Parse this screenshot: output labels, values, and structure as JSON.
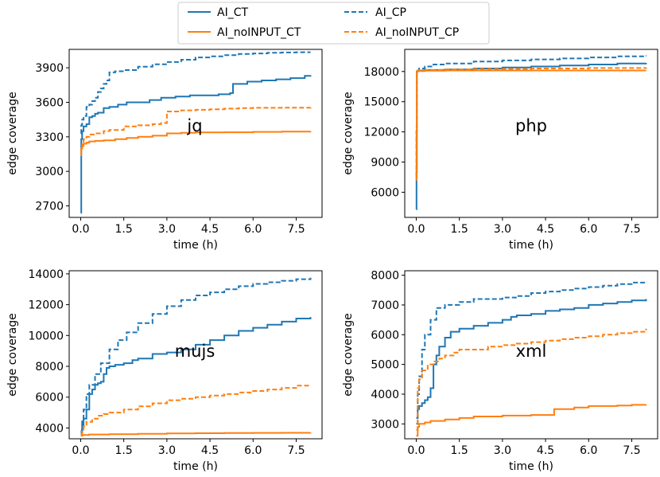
{
  "legend": {
    "entries": [
      {
        "label": "AI_CT",
        "color": "#1f77b4",
        "dash": "solid"
      },
      {
        "label": "AI_CP",
        "color": "#1f77b4",
        "dash": "dashed"
      },
      {
        "label": "AI_noINPUT_CT",
        "color": "#ff7f0e",
        "dash": "solid"
      },
      {
        "label": "AI_noINPUT_CP",
        "color": "#ff7f0e",
        "dash": "dashed"
      }
    ]
  },
  "chart_data": [
    {
      "type": "line",
      "title": "jq",
      "xlabel": "time (h)",
      "ylabel": "edge coverage",
      "xlim": [
        -0.4,
        8.4
      ],
      "ylim": [
        2600,
        4060
      ],
      "xticks": [
        "0.0",
        "1.5",
        "3.0",
        "4.5",
        "6.0",
        "7.5"
      ],
      "yticks": [
        "2700",
        "3000",
        "3300",
        "3600",
        "3900"
      ],
      "series": [
        {
          "name": "AI_CT",
          "x": [
            0,
            0.02,
            0.05,
            0.1,
            0.2,
            0.3,
            0.4,
            0.5,
            0.6,
            0.8,
            1.0,
            1.3,
            1.6,
            2.0,
            2.4,
            2.8,
            3.3,
            3.8,
            4.3,
            4.8,
            5.2,
            5.3,
            5.8,
            6.3,
            6.8,
            7.3,
            7.8,
            8.0
          ],
          "y": [
            2640,
            3280,
            3350,
            3390,
            3410,
            3470,
            3480,
            3500,
            3510,
            3550,
            3560,
            3580,
            3600,
            3600,
            3620,
            3640,
            3650,
            3660,
            3660,
            3670,
            3680,
            3760,
            3780,
            3790,
            3800,
            3810,
            3830,
            3835
          ]
        },
        {
          "name": "AI_CP",
          "x": [
            0,
            0.02,
            0.05,
            0.1,
            0.2,
            0.3,
            0.4,
            0.5,
            0.6,
            0.7,
            0.8,
            0.9,
            1.0,
            1.2,
            1.5,
            2.0,
            2.5,
            3.0,
            3.5,
            4.0,
            4.5,
            5.0,
            5.5,
            6.0,
            6.5,
            7.0,
            7.5,
            8.0
          ],
          "y": [
            3330,
            3400,
            3450,
            3480,
            3560,
            3580,
            3610,
            3640,
            3690,
            3720,
            3760,
            3790,
            3860,
            3870,
            3880,
            3910,
            3930,
            3950,
            3970,
            3990,
            4000,
            4010,
            4020,
            4025,
            4030,
            4033,
            4035,
            4035
          ]
        },
        {
          "name": "AI_noINPUT_CT",
          "x": [
            0,
            0.02,
            0.05,
            0.1,
            0.2,
            0.3,
            0.5,
            0.8,
            1.2,
            1.6,
            2.0,
            2.5,
            3.0,
            3.5,
            4.0,
            5.0,
            6.0,
            7.0,
            8.0
          ],
          "y": [
            3140,
            3200,
            3220,
            3240,
            3250,
            3260,
            3265,
            3270,
            3280,
            3290,
            3300,
            3310,
            3330,
            3335,
            3338,
            3340,
            3343,
            3345,
            3348
          ]
        },
        {
          "name": "AI_noINPUT_CP",
          "x": [
            0,
            0.02,
            0.05,
            0.1,
            0.2,
            0.3,
            0.5,
            0.8,
            1.0,
            1.5,
            2.0,
            2.5,
            2.8,
            3.0,
            3.5,
            4.0,
            4.5,
            5.0,
            5.5,
            6.0,
            7.0,
            8.0
          ],
          "y": [
            3150,
            3200,
            3250,
            3280,
            3300,
            3320,
            3330,
            3350,
            3360,
            3390,
            3400,
            3410,
            3420,
            3520,
            3530,
            3535,
            3540,
            3545,
            3550,
            3552,
            3553,
            3555
          ]
        }
      ]
    },
    {
      "type": "line",
      "title": "php",
      "xlabel": "time (h)",
      "ylabel": "edge coverage",
      "xlim": [
        -0.4,
        8.4
      ],
      "ylim": [
        3500,
        20200
      ],
      "xticks": [
        "0.0",
        "1.5",
        "3.0",
        "4.5",
        "6.0",
        "7.5"
      ],
      "yticks": [
        "6000",
        "9000",
        "12000",
        "15000",
        "18000"
      ],
      "series": [
        {
          "name": "AI_CT",
          "x": [
            0,
            0.01,
            0.02,
            0.05,
            0.3,
            1.0,
            2.0,
            3.0,
            4.0,
            5.0,
            6.0,
            7.0,
            8.0
          ],
          "y": [
            4300,
            8000,
            18000,
            18100,
            18150,
            18200,
            18300,
            18400,
            18500,
            18600,
            18700,
            18800,
            18850
          ]
        },
        {
          "name": "AI_CP",
          "x": [
            0,
            0.01,
            0.02,
            0.05,
            0.1,
            0.3,
            0.6,
            1.0,
            2.0,
            3.0,
            4.0,
            5.0,
            6.0,
            7.0,
            8.0
          ],
          "y": [
            7500,
            12000,
            17800,
            18100,
            18300,
            18500,
            18700,
            18800,
            19000,
            19100,
            19200,
            19300,
            19400,
            19500,
            19600
          ]
        },
        {
          "name": "AI_noINPUT_CT",
          "x": [
            0,
            0.01,
            0.02,
            0.05,
            0.3,
            1.0,
            2.0,
            4.0,
            6.0,
            8.0
          ],
          "y": [
            7200,
            12000,
            18000,
            18050,
            18080,
            18100,
            18100,
            18100,
            18100,
            18100
          ]
        },
        {
          "name": "AI_noINPUT_CP",
          "x": [
            0,
            0.01,
            0.02,
            0.05,
            0.3,
            1.0,
            2.0,
            4.0,
            6.0,
            8.0
          ],
          "y": [
            8200,
            12500,
            18000,
            18100,
            18150,
            18200,
            18250,
            18300,
            18350,
            18400
          ]
        }
      ]
    },
    {
      "type": "line",
      "title": "mujs",
      "xlabel": "time (h)",
      "ylabel": "edge coverage",
      "xlim": [
        -0.4,
        8.4
      ],
      "ylim": [
        3300,
        14200
      ],
      "xticks": [
        "0.0",
        "1.5",
        "3.0",
        "4.5",
        "6.0",
        "7.5"
      ],
      "yticks": [
        "4000",
        "6000",
        "8000",
        "10000",
        "12000",
        "14000"
      ],
      "series": [
        {
          "name": "AI_CT",
          "x": [
            0,
            0.05,
            0.1,
            0.2,
            0.3,
            0.4,
            0.5,
            0.6,
            0.7,
            0.8,
            0.9,
            1.0,
            1.2,
            1.5,
            1.8,
            2.0,
            2.5,
            3.0,
            3.5,
            4.0,
            4.5,
            5.0,
            5.5,
            6.0,
            6.5,
            7.0,
            7.5,
            8.0
          ],
          "y": [
            3700,
            4200,
            4600,
            5200,
            6200,
            6500,
            6800,
            6900,
            7000,
            7500,
            7900,
            8000,
            8100,
            8200,
            8400,
            8500,
            8800,
            8900,
            9100,
            9400,
            9700,
            10000,
            10300,
            10500,
            10700,
            10900,
            11100,
            11200
          ]
        },
        {
          "name": "AI_CP",
          "x": [
            0,
            0.05,
            0.1,
            0.2,
            0.3,
            0.5,
            0.7,
            1.0,
            1.3,
            1.6,
            2.0,
            2.5,
            3.0,
            3.5,
            4.0,
            4.5,
            5.0,
            5.5,
            6.0,
            6.5,
            7.0,
            7.5,
            8.0
          ],
          "y": [
            3800,
            4500,
            5200,
            6200,
            6800,
            7500,
            8200,
            9100,
            9700,
            10200,
            10800,
            11400,
            11900,
            12300,
            12600,
            12800,
            13000,
            13200,
            13350,
            13450,
            13550,
            13650,
            13750
          ]
        },
        {
          "name": "AI_noINPUT_CT",
          "x": [
            0,
            0.05,
            0.3,
            1.0,
            2.0,
            3.0,
            4.0,
            5.0,
            6.0,
            7.0,
            8.0
          ],
          "y": [
            3500,
            3550,
            3580,
            3600,
            3620,
            3650,
            3660,
            3670,
            3680,
            3690,
            3700
          ]
        },
        {
          "name": "AI_noINPUT_CP",
          "x": [
            0,
            0.05,
            0.1,
            0.2,
            0.4,
            0.6,
            0.8,
            1.0,
            1.5,
            2.0,
            2.5,
            3.0,
            3.5,
            4.0,
            4.5,
            5.0,
            5.5,
            6.0,
            6.5,
            7.0,
            7.5,
            8.0
          ],
          "y": [
            3600,
            3900,
            4100,
            4400,
            4600,
            4800,
            4900,
            5000,
            5200,
            5400,
            5600,
            5800,
            5900,
            6000,
            6100,
            6200,
            6300,
            6400,
            6500,
            6600,
            6750,
            6800
          ]
        }
      ]
    },
    {
      "type": "line",
      "title": "xml",
      "xlabel": "time (h)",
      "ylabel": "edge coverage",
      "xlim": [
        -0.4,
        8.4
      ],
      "ylim": [
        2500,
        8150
      ],
      "xticks": [
        "0.0",
        "1.5",
        "3.0",
        "4.5",
        "6.0",
        "7.5"
      ],
      "yticks": [
        "3000",
        "4000",
        "5000",
        "6000",
        "7000",
        "8000"
      ],
      "series": [
        {
          "name": "AI_CT",
          "x": [
            0,
            0.05,
            0.1,
            0.2,
            0.3,
            0.4,
            0.5,
            0.6,
            0.7,
            0.8,
            1.0,
            1.2,
            1.5,
            2.0,
            2.5,
            3.0,
            3.3,
            3.5,
            4.0,
            4.5,
            5.0,
            5.5,
            6.0,
            6.5,
            7.0,
            7.5,
            8.0
          ],
          "y": [
            3200,
            3500,
            3600,
            3700,
            3800,
            3900,
            4200,
            5000,
            5300,
            5600,
            5900,
            6100,
            6200,
            6300,
            6400,
            6500,
            6600,
            6650,
            6700,
            6800,
            6850,
            6900,
            7000,
            7050,
            7100,
            7150,
            7200
          ]
        },
        {
          "name": "AI_CP",
          "x": [
            0,
            0.05,
            0.1,
            0.2,
            0.3,
            0.5,
            0.7,
            1.0,
            1.5,
            2.0,
            2.5,
            3.0,
            3.5,
            4.0,
            4.5,
            5.0,
            5.5,
            6.0,
            6.5,
            7.0,
            7.5,
            8.0
          ],
          "y": [
            3000,
            4000,
            4600,
            5500,
            6000,
            6500,
            6900,
            7000,
            7100,
            7200,
            7200,
            7250,
            7300,
            7400,
            7450,
            7500,
            7550,
            7600,
            7650,
            7700,
            7750,
            7800
          ]
        },
        {
          "name": "AI_noINPUT_CT",
          "x": [
            0,
            0.05,
            0.1,
            0.3,
            0.5,
            1.0,
            1.5,
            2.0,
            3.0,
            4.0,
            4.7,
            4.8,
            5.3,
            5.5,
            6.0,
            6.5,
            7.0,
            7.5,
            8.0
          ],
          "y": [
            2600,
            2900,
            3000,
            3050,
            3100,
            3150,
            3200,
            3250,
            3280,
            3300,
            3300,
            3500,
            3500,
            3550,
            3600,
            3600,
            3620,
            3640,
            3650
          ]
        },
        {
          "name": "AI_noINPUT_CP",
          "x": [
            0,
            0.05,
            0.1,
            0.2,
            0.4,
            0.6,
            0.8,
            1.0,
            1.3,
            1.5,
            2.0,
            2.5,
            3.0,
            3.5,
            4.0,
            4.5,
            5.0,
            5.5,
            6.0,
            6.5,
            7.0,
            7.5,
            8.0
          ],
          "y": [
            2800,
            4200,
            4500,
            4800,
            5000,
            5100,
            5200,
            5300,
            5400,
            5500,
            5500,
            5600,
            5650,
            5700,
            5750,
            5800,
            5850,
            5900,
            5950,
            6000,
            6050,
            6100,
            6200
          ]
        }
      ]
    }
  ]
}
